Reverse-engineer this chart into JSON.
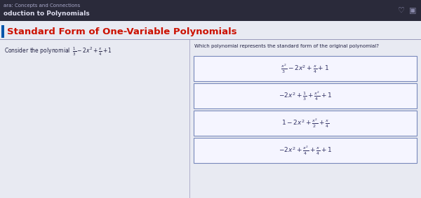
{
  "bg_color": "#d4d8e8",
  "content_bg": "#e8eaf0",
  "header_bg": "#2a2a3a",
  "header_text_color": "#aaaacc",
  "header_bold_color": "#ddddee",
  "title_text": "Standard Form of One-Variable Polynomials",
  "title_color": "#cc1100",
  "title_accent_color": "#0055aa",
  "breadcrumb1": "ara: Concepts and Connections",
  "breadcrumb2": "oduction to Polynomials",
  "consider_text": "Consider the polynomial  $\\frac{1}{3} - 2x^2 + \\frac{x}{4} + 1$",
  "question_text": "Which polynomial represents the standard form of the original polynomial?",
  "options": [
    "$\\frac{x^2}{3} - 2x^2 + \\frac{x}{4} + 1$",
    "$-2x^2 + \\frac{1}{3} + \\frac{x^2}{4} + 1$",
    "$1 - 2x^2 + \\frac{x^2}{2} + \\frac{x}{4}$",
    "$-2x^2 + \\frac{x^2}{4} + \\frac{x}{4} + 1$"
  ],
  "box_color": "#f5f5ff",
  "box_border": "#7788bb",
  "text_color": "#222244",
  "option_text_color": "#333366",
  "icon_color": "#6666aa",
  "right_divider_color": "#6688aa",
  "divider_color": "#9999bb"
}
